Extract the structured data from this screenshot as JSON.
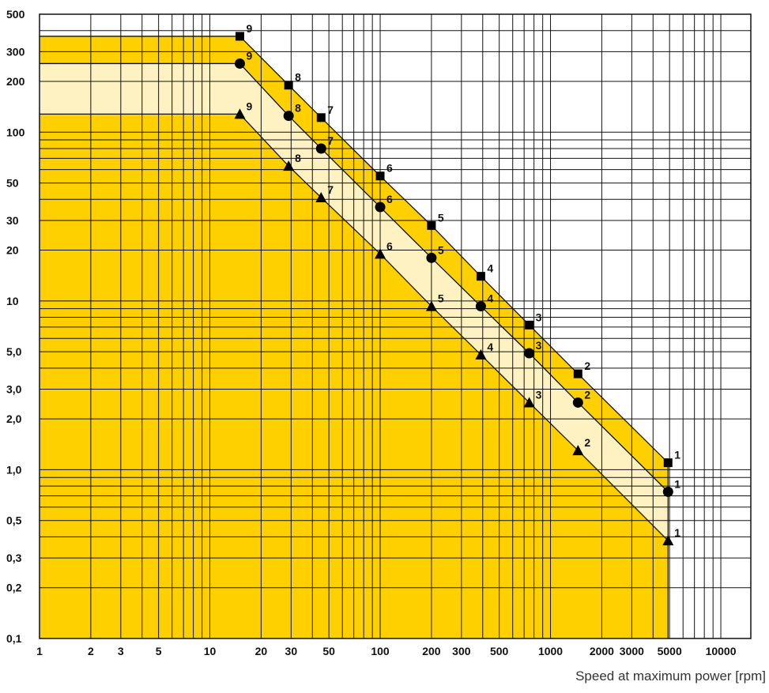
{
  "chart_data": {
    "type": "line",
    "xscale": "log",
    "yscale": "log",
    "xlim": [
      1,
      15000
    ],
    "ylim": [
      0.1,
      500
    ],
    "xlabel": "Speed at maximum power [rpm]",
    "ylabel": "",
    "grid": true,
    "x_ticks": [
      {
        "v": 1,
        "label": "1"
      },
      {
        "v": 2,
        "label": "2"
      },
      {
        "v": 3,
        "label": "3"
      },
      {
        "v": 5,
        "label": "5"
      },
      {
        "v": 10,
        "label": "10"
      },
      {
        "v": 20,
        "label": "20"
      },
      {
        "v": 30,
        "label": "30"
      },
      {
        "v": 50,
        "label": "50"
      },
      {
        "v": 100,
        "label": "100"
      },
      {
        "v": 200,
        "label": "200"
      },
      {
        "v": 300,
        "label": "300"
      },
      {
        "v": 500,
        "label": "500"
      },
      {
        "v": 1000,
        "label": "1000"
      },
      {
        "v": 2000,
        "label": "2000"
      },
      {
        "v": 3000,
        "label": "3000"
      },
      {
        "v": 5000,
        "label": "5000"
      },
      {
        "v": 10000,
        "label": "10000"
      }
    ],
    "y_ticks": [
      {
        "v": 0.1,
        "label": "0,1"
      },
      {
        "v": 0.2,
        "label": "0,2"
      },
      {
        "v": 0.3,
        "label": "0,3"
      },
      {
        "v": 0.5,
        "label": "0,5"
      },
      {
        "v": 1,
        "label": "1,0"
      },
      {
        "v": 2,
        "label": "2,0"
      },
      {
        "v": 3,
        "label": "3,0"
      },
      {
        "v": 5,
        "label": "5,0"
      },
      {
        "v": 10,
        "label": "10"
      },
      {
        "v": 20,
        "label": "20"
      },
      {
        "v": 30,
        "label": "30"
      },
      {
        "v": 50,
        "label": "50"
      },
      {
        "v": 100,
        "label": "100"
      },
      {
        "v": 200,
        "label": "200"
      },
      {
        "v": 300,
        "label": "300"
      },
      {
        "v": 500,
        "label": "500"
      }
    ],
    "series": [
      {
        "marker": "square",
        "points": [
          {
            "x": 15,
            "y": 370,
            "label": "9"
          },
          {
            "x": 29,
            "y": 190,
            "label": "8"
          },
          {
            "x": 45,
            "y": 122,
            "label": "7"
          },
          {
            "x": 100,
            "y": 55,
            "label": "6"
          },
          {
            "x": 200,
            "y": 28,
            "label": "5"
          },
          {
            "x": 390,
            "y": 14,
            "label": "4"
          },
          {
            "x": 750,
            "y": 7.2,
            "label": "3"
          },
          {
            "x": 1450,
            "y": 3.7,
            "label": "2"
          },
          {
            "x": 4900,
            "y": 1.1,
            "label": "1"
          }
        ]
      },
      {
        "marker": "circle",
        "points": [
          {
            "x": 15,
            "y": 255,
            "label": "9"
          },
          {
            "x": 29,
            "y": 125,
            "label": "8"
          },
          {
            "x": 45,
            "y": 80,
            "label": "7"
          },
          {
            "x": 100,
            "y": 36,
            "label": "6"
          },
          {
            "x": 200,
            "y": 18,
            "label": "5"
          },
          {
            "x": 390,
            "y": 9.3,
            "label": "4"
          },
          {
            "x": 750,
            "y": 4.9,
            "label": "3"
          },
          {
            "x": 1450,
            "y": 2.5,
            "label": "2"
          },
          {
            "x": 4900,
            "y": 0.74,
            "label": "1"
          }
        ]
      },
      {
        "marker": "triangle",
        "points": [
          {
            "x": 15,
            "y": 128,
            "label": "9"
          },
          {
            "x": 29,
            "y": 63,
            "label": "8"
          },
          {
            "x": 45,
            "y": 41,
            "label": "7"
          },
          {
            "x": 100,
            "y": 19,
            "label": "6"
          },
          {
            "x": 200,
            "y": 9.3,
            "label": "5"
          },
          {
            "x": 390,
            "y": 4.8,
            "label": "4"
          },
          {
            "x": 750,
            "y": 2.5,
            "label": "3"
          },
          {
            "x": 1450,
            "y": 1.3,
            "label": "2"
          },
          {
            "x": 4900,
            "y": 0.38,
            "label": "1"
          }
        ]
      }
    ],
    "colors": {
      "region_dark": "#FFD000",
      "region_light": "#FFF2C2",
      "grid": "#111111",
      "marker": "#000000"
    }
  }
}
